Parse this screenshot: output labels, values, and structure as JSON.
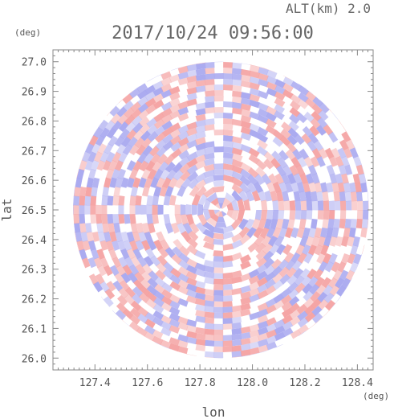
{
  "chart_data": {
    "type": "heatmap",
    "title": "2017/10/24 09:56:00",
    "subtitle": "ALT(km) 2.0",
    "xlabel": "lon",
    "ylabel": "lat",
    "x_unit": "(deg)",
    "y_unit": "(deg)",
    "xlim": [
      127.24,
      128.46
    ],
    "ylim": [
      25.96,
      27.04
    ],
    "x_ticks": [
      "127.4",
      "127.6",
      "127.8",
      "128.0",
      "128.2",
      "128.4"
    ],
    "y_ticks": [
      "26.0",
      "26.1",
      "26.2",
      "26.3",
      "26.4",
      "26.5",
      "26.6",
      "26.7",
      "26.8",
      "26.9",
      "27.0"
    ],
    "radar_center": {
      "lon": 127.88,
      "lat": 26.5
    },
    "radar_radius_deg_lat": 0.5,
    "colors": {
      "positive": "#f4a0a0",
      "negative": "#a6a6ef",
      "neutral": "#ffffff",
      "frame": "#888888"
    }
  }
}
